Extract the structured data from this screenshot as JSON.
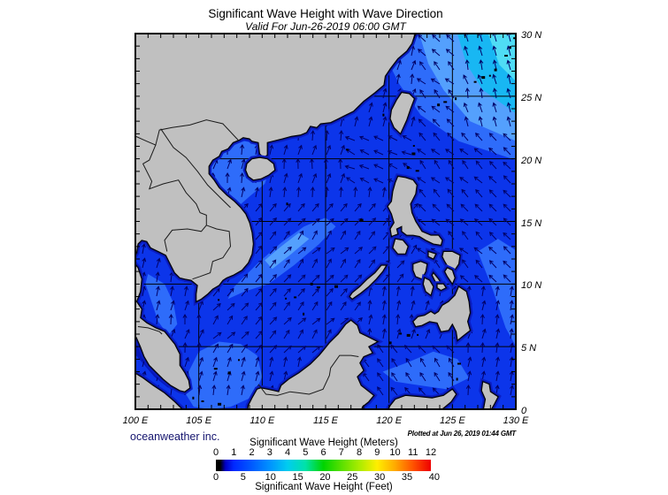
{
  "header": {
    "title": "Significant Wave Height with Wave Direction",
    "subtitle": "Valid For Jun-26-2019 06:00 GMT"
  },
  "axes": {
    "lon_labels": [
      "100 E",
      "105 E",
      "110 E",
      "115 E",
      "120 E",
      "125 E",
      "130 E"
    ],
    "lat_labels": [
      "30 N",
      "25 N",
      "20 N",
      "15 N",
      "10 N",
      "5 N",
      "0"
    ]
  },
  "legend": {
    "meters_title": "Significant Wave Height (Meters)",
    "feet_title": "Significant Wave Height (Feet)",
    "meters_ticks": [
      "0",
      "1",
      "2",
      "3",
      "4",
      "5",
      "6",
      "7",
      "8",
      "9",
      "10",
      "11",
      "12"
    ],
    "feet_ticks": [
      "0",
      "5",
      "10",
      "15",
      "20",
      "25",
      "30",
      "35",
      "40"
    ],
    "gradient": [
      [
        0,
        "#000000"
      ],
      [
        2,
        "#000000"
      ],
      [
        4.5,
        "#0000c8"
      ],
      [
        8.3,
        "#0028ff"
      ],
      [
        16.7,
        "#005aff"
      ],
      [
        25,
        "#0092ff"
      ],
      [
        33.3,
        "#00ccf0"
      ],
      [
        41.7,
        "#00e2a8"
      ],
      [
        50,
        "#00d400"
      ],
      [
        58.3,
        "#58e000"
      ],
      [
        66.7,
        "#aaec00"
      ],
      [
        75,
        "#ffee00"
      ],
      [
        83.3,
        "#ffaa00"
      ],
      [
        91.7,
        "#ff5200"
      ],
      [
        100,
        "#ee0000"
      ]
    ]
  },
  "footer": {
    "credit": "oceanweather inc.",
    "plotted": "Plotted at Jun 26, 2019 01:44 GMT"
  },
  "map": {
    "land_color": "#c0c0c0",
    "coast_color": "#000000",
    "sea_base": "#0c35ea",
    "sea_light": "#2e6cfa",
    "sea_lighter": "#54a0fd",
    "sea_dark": "#0517b8",
    "coast_rim": "#0a1dc4",
    "coast_rim_dark": "#041070",
    "sea_sky": "#18b7f3",
    "sea_cyan": "#4fdcf5",
    "arrow_color": "#000066",
    "grid_color": "#000000"
  }
}
